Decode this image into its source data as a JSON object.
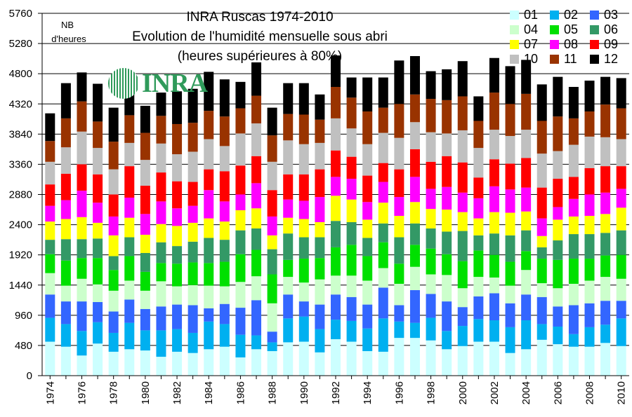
{
  "chart_data": {
    "type": "bar",
    "stacked": true,
    "title": "INRA Ruscas 1974-2010",
    "subtitle": "Evolution de l'humidité mensuelle sous abri",
    "subtitle2": "(heures supérieures à 80%)",
    "ylabel_line1": "NB",
    "ylabel_line2": "d'heures",
    "ylim": [
      0,
      5760
    ],
    "yticks": [
      0,
      480,
      960,
      1440,
      1920,
      2400,
      2880,
      3360,
      3840,
      4320,
      4800,
      5280,
      5760
    ],
    "ytick_labels": [
      "0",
      "480",
      "960",
      "1440",
      "1920",
      "2400",
      "2880",
      "3360",
      "3840",
      "4320",
      "4800",
      "5280",
      "5760"
    ],
    "grid": true,
    "legend_position": "top-right",
    "logo_text": "INRA",
    "categories": [
      "1974",
      "1975",
      "1976",
      "1977",
      "1978",
      "1979",
      "1980",
      "1981",
      "1982",
      "1983",
      "1984",
      "1985",
      "1986",
      "1987",
      "1988",
      "1989",
      "1990",
      "1991",
      "1992",
      "1993",
      "1994",
      "1995",
      "1996",
      "1997",
      "1998",
      "1999",
      "2000",
      "2001",
      "2002",
      "2003",
      "2004",
      "2005",
      "2006",
      "2007",
      "2008",
      "2009",
      "2010"
    ],
    "xtick_labels": [
      "1974",
      "1976",
      "1978",
      "1980",
      "1982",
      "1984",
      "1986",
      "1988",
      "1990",
      "1992",
      "1994",
      "1996",
      "1998",
      "2000",
      "2002",
      "2004",
      "2006",
      "2008",
      "2010"
    ],
    "series": [
      {
        "name": "01",
        "color": "#ccffff",
        "values": [
          540,
          460,
          320,
          510,
          380,
          420,
          400,
          300,
          380,
          360,
          420,
          460,
          290,
          420,
          390,
          530,
          540,
          370,
          580,
          540,
          390,
          380,
          600,
          600,
          560,
          420,
          470,
          540,
          540,
          360,
          420,
          570,
          500,
          460,
          460,
          520,
          470
        ]
      },
      {
        "name": "02",
        "color": "#00b0f0",
        "values": [
          380,
          360,
          390,
          340,
          300,
          420,
          320,
          420,
          360,
          320,
          440,
          360,
          360,
          220,
          140,
          380,
          400,
          370,
          310,
          330,
          360,
          530,
          260,
          240,
          360,
          290,
          320,
          360,
          340,
          410,
          460,
          250,
          280,
          200,
          310,
          290,
          440
        ]
      },
      {
        "name": "03",
        "color": "#3366ff",
        "values": [
          370,
          360,
          470,
          320,
          340,
          370,
          340,
          380,
          390,
          440,
          210,
          320,
          430,
          560,
          170,
          380,
          240,
          390,
          400,
          380,
          380,
          490,
          260,
          520,
          380,
          470,
          300,
          360,
          430,
          380,
          410,
          430,
          320,
          460,
          380,
          380,
          280
        ]
      },
      {
        "name": "04",
        "color": "#ccffcc",
        "values": [
          340,
          250,
          360,
          280,
          330,
          300,
          290,
          400,
          290,
          320,
          360,
          280,
          410,
          380,
          450,
          280,
          300,
          400,
          300,
          340,
          380,
          310,
          340,
          370,
          310,
          420,
          300,
          310,
          250,
          280,
          390,
          220,
          290,
          340,
          360,
          380,
          350
        ]
      },
      {
        "name": "05",
        "color": "#00e000",
        "values": [
          300,
          400,
          330,
          420,
          330,
          390,
          300,
          290,
          360,
          360,
          360,
          390,
          440,
          420,
          460,
          270,
          380,
          340,
          450,
          490,
          390,
          410,
          320,
          350,
          410,
          330,
          430,
          420,
          360,
          380,
          300,
          390,
          450,
          400,
          350,
          340,
          380
        ]
      },
      {
        "name": "06",
        "color": "#339966",
        "values": [
          230,
          340,
          300,
          310,
          220,
          300,
          300,
          330,
          280,
          330,
          400,
          350,
          380,
          340,
          400,
          420,
          340,
          330,
          420,
          360,
          290,
          300,
          420,
          340,
          320,
          360,
          480,
          240,
          340,
          420,
          330,
          180,
          310,
          390,
          390,
          360,
          390
        ]
      },
      {
        "name": "07",
        "color": "#ffff00",
        "values": [
          290,
          320,
          350,
          250,
          330,
          310,
          290,
          290,
          320,
          300,
          310,
          290,
          320,
          320,
          220,
          250,
          290,
          240,
          400,
          360,
          290,
          330,
          340,
          340,
          310,
          350,
          300,
          270,
          340,
          360,
          300,
          180,
          330,
          280,
          290,
          300,
          360
        ]
      },
      {
        "name": "08",
        "color": "#ff00ff",
        "values": [
          250,
          300,
          420,
          320,
          300,
          320,
          330,
          360,
          280,
          270,
          450,
          320,
          250,
          400,
          300,
          290,
          290,
          400,
          300,
          330,
          280,
          330,
          300,
          400,
          320,
          360,
          310,
          320,
          410,
          370,
          380,
          280,
          200,
          280,
          340,
          340,
          300
        ]
      },
      {
        "name": "09",
        "color": "#ff0000",
        "values": [
          340,
          420,
          420,
          450,
          350,
          500,
          450,
          460,
          430,
          380,
          330,
          480,
          460,
          430,
          420,
          400,
          420,
          440,
          420,
          350,
          420,
          300,
          440,
          440,
          430,
          490,
          480,
          330,
          430,
          410,
          470,
          490,
          450,
          350,
          420,
          420,
          360
        ]
      },
      {
        "name": "10",
        "color": "#c0c0c0",
        "values": [
          360,
          420,
          520,
          420,
          400,
          370,
          410,
          460,
          430,
          480,
          480,
          400,
          510,
          520,
          450,
          540,
          480,
          420,
          510,
          450,
          500,
          480,
          500,
          430,
          470,
          360,
          510,
          470,
          470,
          440,
          450,
          540,
          440,
          510,
          500,
          460,
          430
        ]
      },
      {
        "name": "11",
        "color": "#993300",
        "values": [
          330,
          460,
          480,
          420,
          440,
          440,
          430,
          440,
          480,
          460,
          450,
          470,
          400,
          440,
          420,
          420,
          470,
          370,
          500,
          490,
          520,
          400,
          540,
          440,
          530,
          530,
          540,
          430,
          590,
          510,
          570,
          520,
          550,
          420,
          400,
          520,
          490
        ]
      },
      {
        "name": "12",
        "color": "#000000",
        "values": [
          440,
          560,
          460,
          600,
          540,
          380,
          430,
          370,
          520,
          540,
          620,
          590,
          420,
          530,
          440,
          490,
          500,
          400,
          500,
          320,
          540,
          480,
          690,
          610,
          440,
          490,
          560,
          390,
          550,
          600,
          540,
          580,
          630,
          500,
          490,
          440,
          480
        ]
      }
    ]
  }
}
